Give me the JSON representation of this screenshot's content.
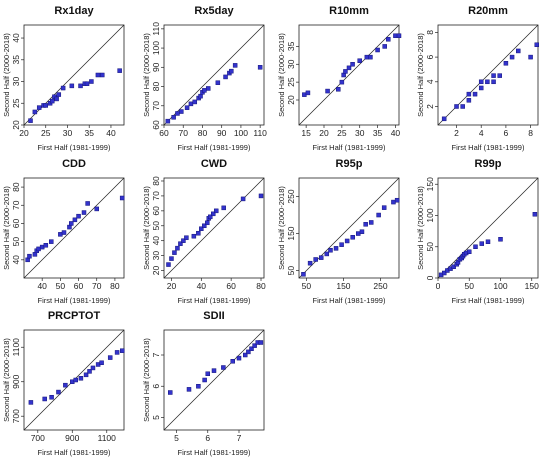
{
  "figure": {
    "xlabel": "First Half (1981-1999)",
    "ylabel": "Second Half (2000-2018)"
  },
  "chart_data": [
    {
      "type": "scatter",
      "title": "Rx1day",
      "xlabel": "First Half (1981-1999)",
      "ylabel": "Second Half (2000-2018)",
      "xlim": [
        20,
        43
      ],
      "ylim": [
        20,
        43
      ],
      "xticks": [
        20,
        25,
        30,
        35,
        40
      ],
      "yticks": [
        20,
        25,
        30,
        35,
        40
      ],
      "reference_line": "1:1",
      "grid": false,
      "marker_color": "#3333cc",
      "series": [
        {
          "x": [
            21.5,
            22.5,
            23.5,
            24.5,
            25.0,
            26.0,
            26.5,
            27.0,
            27.5,
            28.0,
            29.0,
            31.0,
            33.0,
            34.0,
            34.5,
            35.5,
            37.0,
            38.0,
            42.0
          ],
          "y": [
            21.0,
            23.0,
            24.0,
            24.5,
            24.5,
            25.0,
            25.5,
            26.5,
            26.0,
            27.0,
            28.5,
            29.0,
            29.0,
            29.5,
            29.5,
            30.0,
            31.5,
            31.5,
            32.5
          ]
        }
      ]
    },
    {
      "type": "scatter",
      "title": "Rx5day",
      "xlabel": "First Half (1981-1999)",
      "ylabel": "Second Half (2000-2018)",
      "xlim": [
        60,
        112
      ],
      "ylim": [
        60,
        112
      ],
      "xticks": [
        60,
        70,
        80,
        90,
        100,
        110
      ],
      "yticks": [
        60,
        70,
        80,
        90,
        100,
        110
      ],
      "reference_line": "1:1",
      "grid": false,
      "marker_color": "#3333cc",
      "series": [
        {
          "x": [
            62,
            65,
            67,
            69,
            72,
            74,
            76,
            78,
            79,
            80,
            81,
            83,
            88,
            92,
            94,
            95,
            97,
            110
          ],
          "y": [
            62,
            64,
            66,
            67,
            69,
            71,
            72,
            74,
            75,
            77,
            78,
            79,
            82,
            85,
            87,
            88,
            91,
            90
          ]
        }
      ]
    },
    {
      "type": "scatter",
      "title": "R10mm",
      "xlabel": "First Half (1981-1999)",
      "ylabel": "Second Half (2000-2018)",
      "xlim": [
        13,
        41
      ],
      "ylim": [
        13,
        41
      ],
      "xticks": [
        15,
        20,
        25,
        30,
        35,
        40
      ],
      "yticks": [
        20,
        25,
        30,
        35
      ],
      "reference_line": "1:1",
      "grid": false,
      "marker_color": "#3333cc",
      "series": [
        {
          "x": [
            14.5,
            15.5,
            21.0,
            24.0,
            25.0,
            25.5,
            26.0,
            27.0,
            28.0,
            30.0,
            32.0,
            33.0,
            35.0,
            37.0,
            38.0,
            40.0,
            41.0
          ],
          "y": [
            21.5,
            22.0,
            22.5,
            23.0,
            25.0,
            27.0,
            28.0,
            29.0,
            30.0,
            31.0,
            32.0,
            32.0,
            34.0,
            35.0,
            37.0,
            38.0,
            38.0
          ]
        }
      ]
    },
    {
      "type": "scatter",
      "title": "R20mm",
      "xlabel": "First Half (1981-1999)",
      "ylabel": "Second Half (2000-2018)",
      "xlim": [
        0.5,
        8.6
      ],
      "ylim": [
        0.5,
        8.6
      ],
      "xticks": [
        2,
        4,
        6,
        8
      ],
      "yticks": [
        2,
        4,
        6,
        8
      ],
      "reference_line": "1:1",
      "grid": false,
      "marker_color": "#3333cc",
      "series": [
        {
          "x": [
            1.0,
            2.0,
            2.5,
            3.0,
            3.0,
            3.5,
            4.0,
            4.0,
            4.5,
            5.0,
            5.0,
            5.5,
            6.0,
            6.5,
            7.0,
            8.0,
            8.5
          ],
          "y": [
            1.0,
            2.0,
            2.0,
            2.5,
            3.0,
            3.0,
            3.5,
            4.0,
            4.0,
            4.0,
            4.5,
            4.5,
            5.5,
            6.0,
            6.5,
            6.0,
            7.0
          ]
        }
      ]
    },
    {
      "type": "scatter",
      "title": "CDD",
      "xlabel": "First Half (1981-1999)",
      "ylabel": "Second Half (2000-2018)",
      "xlim": [
        30,
        85
      ],
      "ylim": [
        30,
        85
      ],
      "xticks": [
        40,
        50,
        60,
        70,
        80
      ],
      "yticks": [
        40,
        50,
        60,
        70,
        80
      ],
      "reference_line": "1:1",
      "grid": false,
      "marker_color": "#3333cc",
      "series": [
        {
          "x": [
            32,
            33,
            36,
            37,
            38,
            40,
            42,
            45,
            50,
            52,
            55,
            56,
            58,
            60,
            63,
            65,
            70,
            84
          ],
          "y": [
            40,
            42,
            43,
            45,
            46,
            47,
            48,
            50,
            54,
            55,
            58,
            60,
            62,
            64,
            66,
            71,
            68,
            74
          ]
        }
      ]
    },
    {
      "type": "scatter",
      "title": "CWD",
      "xlabel": "First Half (1981-1999)",
      "ylabel": "Second Half (2000-2018)",
      "xlim": [
        15,
        82
      ],
      "ylim": [
        15,
        82
      ],
      "xticks": [
        20,
        40,
        60,
        80
      ],
      "yticks": [
        20,
        30,
        40,
        50,
        60,
        70,
        80
      ],
      "reference_line": "1:1",
      "grid": false,
      "marker_color": "#3333cc",
      "series": [
        {
          "x": [
            18,
            20,
            22,
            24,
            26,
            28,
            30,
            35,
            38,
            40,
            42,
            44,
            45,
            46,
            48,
            50,
            55,
            68,
            80
          ],
          "y": [
            24,
            28,
            32,
            35,
            38,
            40,
            42,
            43,
            45,
            48,
            50,
            52,
            55,
            56,
            58,
            60,
            62,
            68,
            70
          ]
        }
      ]
    },
    {
      "type": "scatter",
      "title": "R95p",
      "xlabel": "First Half (1981-1999)",
      "ylabel": "Second Half (2000-2018)",
      "xlim": [
        30,
        300
      ],
      "ylim": [
        30,
        300
      ],
      "xticks": [
        50,
        150,
        250
      ],
      "yticks": [
        50,
        150,
        250
      ],
      "reference_line": "1:1",
      "grid": false,
      "marker_color": "#3333cc",
      "series": [
        {
          "x": [
            42,
            60,
            75,
            90,
            105,
            115,
            130,
            145,
            160,
            175,
            190,
            200,
            210,
            225,
            245,
            260,
            285,
            295
          ],
          "y": [
            40,
            70,
            80,
            85,
            95,
            105,
            110,
            120,
            130,
            140,
            150,
            155,
            175,
            180,
            200,
            220,
            235,
            240
          ]
        }
      ]
    },
    {
      "type": "scatter",
      "title": "R99p",
      "xlabel": "First Half (1981-1999)",
      "ylabel": "Second Half (2000-2018)",
      "xlim": [
        0,
        160
      ],
      "ylim": [
        0,
        160
      ],
      "xticks": [
        0,
        50,
        100,
        150
      ],
      "yticks": [
        0,
        50,
        100,
        150
      ],
      "reference_line": "1:1",
      "grid": false,
      "marker_color": "#3333cc",
      "series": [
        {
          "x": [
            5,
            10,
            15,
            20,
            25,
            30,
            32,
            35,
            38,
            40,
            42,
            45,
            50,
            60,
            70,
            80,
            100,
            155
          ],
          "y": [
            5,
            8,
            12,
            15,
            18,
            22,
            25,
            30,
            32,
            35,
            38,
            40,
            42,
            50,
            55,
            58,
            62,
            102
          ]
        }
      ]
    },
    {
      "type": "scatter",
      "title": "PRCPTOT",
      "xlabel": "First Half (1981-1999)",
      "ylabel": "Second Half (2000-2018)",
      "xlim": [
        620,
        1200
      ],
      "ylim": [
        620,
        1200
      ],
      "xticks": [
        700,
        900,
        1100
      ],
      "yticks": [
        700,
        900,
        1100
      ],
      "reference_line": "1:1",
      "grid": false,
      "marker_color": "#3333cc",
      "series": [
        {
          "x": [
            660,
            740,
            780,
            820,
            860,
            900,
            920,
            950,
            980,
            1000,
            1020,
            1050,
            1070,
            1120,
            1160,
            1190
          ],
          "y": [
            780,
            800,
            810,
            840,
            880,
            900,
            910,
            920,
            940,
            960,
            980,
            1000,
            1010,
            1040,
            1070,
            1080
          ]
        }
      ]
    },
    {
      "type": "scatter",
      "title": "SDII",
      "xlabel": "First Half (1981-1999)",
      "ylabel": "Second Half (2000-2018)",
      "xlim": [
        4.6,
        7.8
      ],
      "ylim": [
        4.6,
        7.8
      ],
      "xticks": [
        5.0,
        6.0,
        7.0
      ],
      "yticks": [
        5.0,
        6.0,
        7.0
      ],
      "reference_line": "1:1",
      "grid": false,
      "marker_color": "#3333cc",
      "series": [
        {
          "x": [
            4.8,
            5.4,
            5.7,
            5.9,
            6.0,
            6.2,
            6.5,
            6.8,
            7.0,
            7.2,
            7.3,
            7.4,
            7.5,
            7.6,
            7.7
          ],
          "y": [
            5.8,
            5.9,
            6.0,
            6.2,
            6.4,
            6.5,
            6.6,
            6.8,
            6.9,
            7.0,
            7.1,
            7.2,
            7.3,
            7.4,
            7.4
          ]
        }
      ]
    }
  ]
}
